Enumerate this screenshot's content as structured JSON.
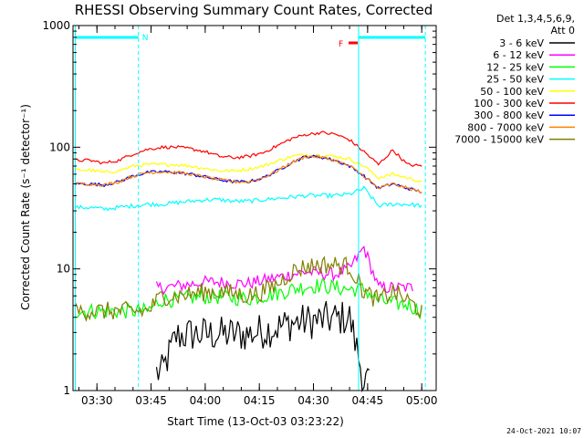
{
  "chart_data": {
    "type": "line",
    "title": "RHESSI Observing Summary Count Rates, Corrected",
    "xlabel": "Start Time (13-Oct-03 03:23:22)",
    "ylabel": "Corrected Count Rate (s⁻¹ detector⁻¹)",
    "yscale": "log",
    "xlim": [
      "03:23:22",
      "05:04:00"
    ],
    "ylim": [
      1,
      1000
    ],
    "x_ticks": [
      "03:30",
      "03:45",
      "04:00",
      "04:15",
      "04:30",
      "04:45",
      "05:00"
    ],
    "y_ticks": [
      "1",
      "10",
      "100",
      "1000"
    ],
    "legend_header": [
      "Det 1,3,4,5,6,9,",
      "Att 0"
    ],
    "legend_placement": "right",
    "date_stamp": "24-Oct-2021 10:07",
    "annotations": {
      "night_marker": "N",
      "flare_marker": "F"
    },
    "x": [
      "03:24",
      "03:28",
      "03:32",
      "03:36",
      "03:40",
      "03:44",
      "03:48",
      "03:52",
      "03:56",
      "04:00",
      "04:04",
      "04:08",
      "04:12",
      "04:16",
      "04:20",
      "04:24",
      "04:28",
      "04:32",
      "04:36",
      "04:40",
      "04:44",
      "04:48",
      "04:52",
      "04:56",
      "05:00"
    ],
    "series": [
      {
        "name": "3 - 6 keV",
        "color": "#000000",
        "values": [
          null,
          null,
          null,
          null,
          null,
          null,
          1.4,
          2.8,
          2.9,
          2.9,
          2.9,
          2.9,
          2.9,
          3.1,
          3.3,
          3.6,
          3.7,
          3.8,
          3.9,
          4.0,
          1.2,
          null,
          null,
          null,
          null
        ]
      },
      {
        "name": "6 - 12 keV",
        "color": "#ff00ff",
        "values": [
          null,
          null,
          null,
          null,
          null,
          null,
          7.0,
          7.2,
          7.5,
          7.8,
          7.8,
          7.6,
          7.6,
          8.0,
          8.5,
          9.0,
          9.5,
          9.2,
          9.0,
          10.0,
          15.0,
          7.0,
          7.0,
          7.0,
          null
        ]
      },
      {
        "name": "12 - 25 keV",
        "color": "#00ff00",
        "values": [
          4.5,
          4.5,
          4.5,
          4.5,
          4.5,
          4.5,
          5.6,
          5.6,
          5.8,
          5.9,
          5.9,
          5.8,
          5.7,
          6.0,
          6.3,
          6.8,
          7.2,
          7.3,
          7.0,
          6.8,
          6.8,
          5.5,
          5.2,
          5.1,
          4.5
        ]
      },
      {
        "name": "25 - 50 keV",
        "color": "#00ffff",
        "values": [
          32,
          32,
          31,
          32,
          33,
          34,
          34,
          35,
          36,
          37,
          37,
          36,
          36,
          37,
          38,
          39,
          40,
          40,
          40,
          41,
          46,
          33,
          34,
          34,
          33
        ]
      },
      {
        "name": "50 - 100 keV",
        "color": "#ffff00",
        "values": [
          65,
          65,
          62,
          64,
          70,
          72,
          72,
          72,
          70,
          67,
          64,
          64,
          66,
          70,
          77,
          84,
          87,
          86,
          84,
          80,
          70,
          56,
          60,
          56,
          52
        ]
      },
      {
        "name": "100 - 300 keV",
        "color": "#ff0000",
        "values": [
          78,
          78,
          74,
          78,
          88,
          96,
          100,
          100,
          97,
          92,
          84,
          82,
          84,
          90,
          103,
          118,
          127,
          132,
          128,
          115,
          92,
          72,
          95,
          72,
          70
        ]
      },
      {
        "name": "300 - 800 keV",
        "color": "#0000ff",
        "values": [
          50,
          50,
          49,
          52,
          58,
          62,
          63,
          62,
          60,
          57,
          54,
          52,
          52,
          56,
          64,
          75,
          84,
          83,
          78,
          70,
          58,
          46,
          50,
          46,
          43
        ]
      },
      {
        "name": "800 - 7000 keV",
        "color": "#ff8000",
        "values": [
          50,
          50,
          49,
          52,
          58,
          62,
          63,
          62,
          60,
          57,
          54,
          52,
          52,
          56,
          64,
          75,
          84,
          83,
          78,
          70,
          58,
          46,
          50,
          46,
          43
        ]
      },
      {
        "name": "7000 - 15000 keV",
        "color": "#808000",
        "values": [
          4.5,
          4.5,
          4.5,
          4.5,
          4.5,
          4.5,
          6.0,
          6.0,
          6.2,
          6.5,
          6.5,
          6.3,
          6.0,
          6.5,
          7.5,
          9.5,
          10.5,
          10.8,
          10.8,
          10.5,
          6.5,
          5.5,
          6.5,
          5.5,
          4.5
        ]
      }
    ]
  }
}
